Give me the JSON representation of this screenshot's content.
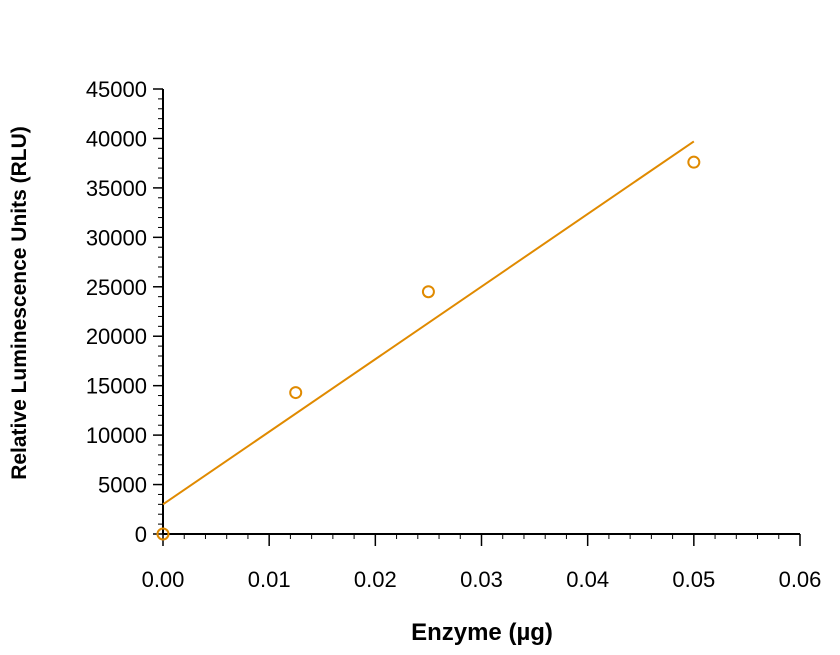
{
  "chart_data": {
    "type": "scatter",
    "title": "",
    "xlabel": "Enzyme (µg)",
    "ylabel": "Relative Luminescence Units (RLU)",
    "xlim": [
      0,
      0.06
    ],
    "ylim": [
      0,
      45000
    ],
    "x_ticks": [
      "0.00",
      "0.01",
      "0.02",
      "0.03",
      "0.04",
      "0.05",
      "0.06"
    ],
    "y_ticks": [
      "0",
      "5000",
      "10000",
      "15000",
      "20000",
      "25000",
      "30000",
      "35000",
      "40000",
      "45000"
    ],
    "grid": false,
    "legend": "none",
    "color": "#E08A00",
    "points": [
      {
        "x": 0,
        "y": 0
      },
      {
        "x": 0.0125,
        "y": 14300
      },
      {
        "x": 0.025,
        "y": 24500
      },
      {
        "x": 0.05,
        "y": 37600
      }
    ],
    "fit_line": {
      "x": [
        0,
        0.05
      ],
      "y": [
        3000,
        39700
      ]
    }
  }
}
